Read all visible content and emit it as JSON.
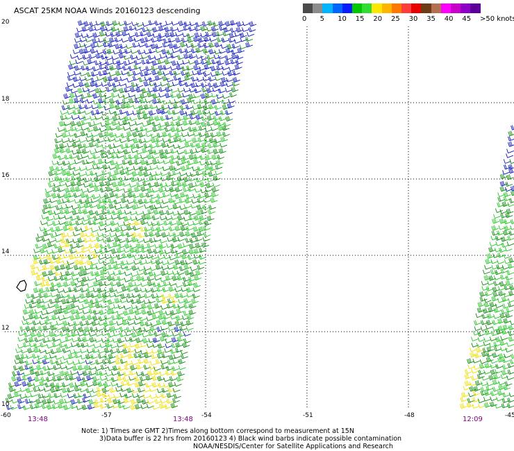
{
  "title": "ASCAT 25KM NOAA Winds 20160123 descending",
  "scale": {
    "labels": [
      "0",
      "5",
      "10",
      "15",
      "20",
      "25",
      "30",
      "35",
      "40",
      "45",
      ">50 knots"
    ],
    "colors": [
      "#4a4a4a",
      "#8c8c8c",
      "#00b4ff",
      "#0064ff",
      "#0a1cff",
      "#00c800",
      "#32dc32",
      "#ffe600",
      "#ffb400",
      "#ff7800",
      "#ff3c3c",
      "#e60000",
      "#6e3c14",
      "#b46e50",
      "#ff00ff",
      "#c800c8",
      "#8c00c8",
      "#5a0096"
    ]
  },
  "map": {
    "lat_labels": [
      "20",
      "18",
      "16",
      "14",
      "12",
      "10"
    ],
    "lon_labels": [
      "-60",
      "-57",
      "-54",
      "-51",
      "-48",
      "-45"
    ]
  },
  "times": [
    "13:48",
    "13:48",
    "12:09"
  ],
  "notes": {
    "line1": "Note: 1) Times are GMT 2)Times along bottom correspond to measurement at 15N",
    "line2": "3)Data buffer is 22 hrs from 20160123 4) Black wind barbs indicate possible contamination",
    "line3": "NOAA/NESDIS/Center for Satellite Applications and Research"
  },
  "barb_colors": {
    "calm_blue": "#0a14c8",
    "light_green": "#22c822",
    "mid_green": "#0a8c0a",
    "yellow": "#f0e000"
  }
}
